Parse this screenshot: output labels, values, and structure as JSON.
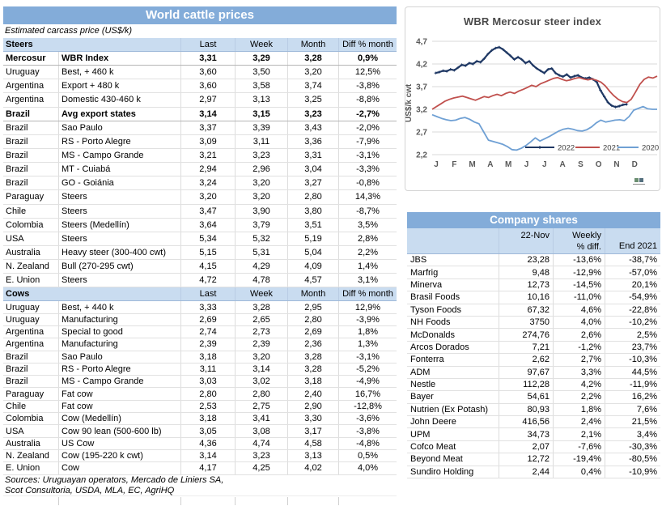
{
  "colors": {
    "header_blue": "#83ACD9",
    "row_blue": "#C9DCF0",
    "series_2022": "#1F3864",
    "series_2021": "#C0504D",
    "series_2020": "#6FA0D4"
  },
  "left_panel": {
    "title": "World cattle prices",
    "subtitle": "Estimated carcass price (US$/k)",
    "columns": [
      "Last",
      "Week",
      "Month",
      "Diff % month"
    ],
    "sections": [
      {
        "name": "Steers",
        "rows": [
          {
            "b": true,
            "c": [
              "Mercosur",
              "WBR Index",
              "3,31",
              "3,29",
              "3,28",
              "0,9%"
            ]
          },
          {
            "b": false,
            "c": [
              "Uruguay",
              "Best, + 460 k",
              "3,60",
              "3,50",
              "3,20",
              "12,5%"
            ]
          },
          {
            "b": false,
            "c": [
              "Argentina",
              "Export + 480 k",
              "3,60",
              "3,58",
              "3,74",
              "-3,8%"
            ]
          },
          {
            "b": false,
            "c": [
              "Argentina",
              "Domestic 430-460 k",
              "2,97",
              "3,13",
              "3,25",
              "-8,8%"
            ]
          },
          {
            "b": true,
            "c": [
              "Brazil",
              "Avg export states",
              "3,14",
              "3,15",
              "3,23",
              "-2,7%"
            ]
          },
          {
            "b": false,
            "c": [
              "Brazil",
              "Sao Paulo",
              "3,37",
              "3,39",
              "3,43",
              "-2,0%"
            ]
          },
          {
            "b": false,
            "c": [
              "Brazil",
              "RS - Porto Alegre",
              "3,09",
              "3,11",
              "3,36",
              "-7,9%"
            ]
          },
          {
            "b": false,
            "c": [
              "Brazil",
              "MS - Campo Grande",
              "3,21",
              "3,23",
              "3,31",
              "-3,1%"
            ]
          },
          {
            "b": false,
            "c": [
              "Brazil",
              "MT - Cuiabá",
              "2,94",
              "2,96",
              "3,04",
              "-3,3%"
            ]
          },
          {
            "b": false,
            "c": [
              "Brazil",
              "GO - Goiánia",
              "3,24",
              "3,20",
              "3,27",
              "-0,8%"
            ]
          },
          {
            "b": false,
            "c": [
              "Paraguay",
              "Steers",
              "3,20",
              "3,20",
              "2,80",
              "14,3%"
            ]
          },
          {
            "b": false,
            "c": [
              "Chile",
              "Steers",
              "3,47",
              "3,90",
              "3,80",
              "-8,7%"
            ]
          },
          {
            "b": false,
            "c": [
              "Colombia",
              "Steers (Medellín)",
              "3,64",
              "3,79",
              "3,51",
              "3,5%"
            ]
          },
          {
            "b": false,
            "c": [
              "USA",
              "Steers",
              "5,34",
              "5,32",
              "5,19",
              "2,8%"
            ]
          },
          {
            "b": false,
            "c": [
              "Australia",
              "Heavy steer (300-400 cwt)",
              "5,15",
              "5,31",
              "5,04",
              "2,2%"
            ]
          },
          {
            "b": false,
            "c": [
              "N. Zealand",
              "Bull (270-295 cwt)",
              "4,15",
              "4,29",
              "4,09",
              "1,4%"
            ]
          },
          {
            "b": false,
            "c": [
              "E. Union",
              "Steers",
              "4,72",
              "4,78",
              "4,57",
              "3,1%"
            ]
          }
        ]
      },
      {
        "name": "Cows",
        "rows": [
          {
            "b": false,
            "c": [
              "Uruguay",
              "Best, + 440 k",
              "3,33",
              "3,28",
              "2,95",
              "12,9%"
            ]
          },
          {
            "b": false,
            "c": [
              "Uruguay",
              "Manufacturing",
              "2,69",
              "2,65",
              "2,80",
              "-3,9%"
            ]
          },
          {
            "b": false,
            "c": [
              "Argentina",
              "Special to good",
              "2,74",
              "2,73",
              "2,69",
              "1,8%"
            ]
          },
          {
            "b": false,
            "c": [
              "Argentina",
              "Manufacturing",
              "2,39",
              "2,39",
              "2,36",
              "1,3%"
            ]
          },
          {
            "b": false,
            "c": [
              "Brazil",
              "Sao Paulo",
              "3,18",
              "3,20",
              "3,28",
              "-3,1%"
            ]
          },
          {
            "b": false,
            "c": [
              "Brazil",
              "RS - Porto Alegre",
              "3,11",
              "3,14",
              "3,28",
              "-5,2%"
            ]
          },
          {
            "b": false,
            "c": [
              "Brazil",
              "MS - Campo Grande",
              "3,03",
              "3,02",
              "3,18",
              "-4,9%"
            ]
          },
          {
            "b": false,
            "c": [
              "Paraguay",
              "Fat cow",
              "2,80",
              "2,80",
              "2,40",
              "16,7%"
            ]
          },
          {
            "b": false,
            "c": [
              "Chile",
              "Fat cow",
              "2,53",
              "2,75",
              "2,90",
              "-12,8%"
            ]
          },
          {
            "b": false,
            "c": [
              "Colombia",
              "Cow (Medellín)",
              "3,18",
              "3,41",
              "3,30",
              "-3,6%"
            ]
          },
          {
            "b": false,
            "c": [
              "USA",
              "Cow 90 lean (500-600 lb)",
              "3,05",
              "3,08",
              "3,17",
              "-3,8%"
            ]
          },
          {
            "b": false,
            "c": [
              "Australia",
              "US Cow",
              "4,36",
              "4,74",
              "4,58",
              "-4,8%"
            ]
          },
          {
            "b": false,
            "c": [
              "N. Zealand",
              "Cow (195-220 k cwt)",
              "3,14",
              "3,23",
              "3,13",
              "0,5%"
            ]
          },
          {
            "b": false,
            "c": [
              "E. Union",
              "Cow",
              "4,17",
              "4,25",
              "4,02",
              "4,0%"
            ]
          }
        ]
      }
    ],
    "sources_line1": "Sources: Uruguayan operators, Mercado de Liniers SA,",
    "sources_line2": "Scot Consultoria, USDA, MLA, EC, AgriHQ"
  },
  "chart_data": {
    "type": "line",
    "title": "WBR Mercosur steer index",
    "xlabel": "",
    "ylabel": "US$/k cwt",
    "ylim": [
      2.2,
      4.7
    ],
    "grid": true,
    "legend_position": "inside-bottom-right",
    "ytick_values": [
      4.7,
      4.2,
      3.7,
      3.2,
      2.7,
      2.2
    ],
    "ytick_labels": [
      "4,7",
      "4,2",
      "3,7",
      "3,2",
      "2,7",
      "2,2"
    ],
    "x_labels": [
      "J",
      "F",
      "M",
      "A",
      "M",
      "J",
      "J",
      "A",
      "S",
      "O",
      "N",
      "D"
    ],
    "series": [
      {
        "name": "2022",
        "color": "#1F3864",
        "marker": "plus",
        "x_start": 0.015,
        "x_end": 0.865,
        "values": [
          4.0,
          4.02,
          4.05,
          4.04,
          4.08,
          4.06,
          4.12,
          4.18,
          4.16,
          4.22,
          4.2,
          4.26,
          4.24,
          4.32,
          4.42,
          4.5,
          4.55,
          4.57,
          4.52,
          4.45,
          4.38,
          4.3,
          4.35,
          4.3,
          4.22,
          4.26,
          4.17,
          4.1,
          4.05,
          4.0,
          4.08,
          4.1,
          4.0,
          3.95,
          3.92,
          3.97,
          3.9,
          3.93,
          3.95,
          3.9,
          3.88,
          3.9,
          3.86,
          3.8,
          3.62,
          3.48,
          3.35,
          3.28,
          3.25,
          3.27,
          3.3,
          3.31
        ]
      },
      {
        "name": "2021",
        "color": "#C0504D",
        "x_start": 0,
        "x_end": 1,
        "values": [
          3.2,
          3.26,
          3.32,
          3.38,
          3.42,
          3.45,
          3.47,
          3.49,
          3.46,
          3.43,
          3.4,
          3.44,
          3.48,
          3.46,
          3.5,
          3.53,
          3.5,
          3.55,
          3.58,
          3.55,
          3.6,
          3.64,
          3.68,
          3.73,
          3.7,
          3.76,
          3.8,
          3.84,
          3.88,
          3.9,
          3.86,
          3.83,
          3.85,
          3.88,
          3.9,
          3.87,
          3.85,
          3.87,
          3.84,
          3.8,
          3.72,
          3.6,
          3.5,
          3.42,
          3.37,
          3.35,
          3.42,
          3.58,
          3.75,
          3.86,
          3.91,
          3.89,
          3.93
        ]
      },
      {
        "name": "2020",
        "color": "#6FA0D4",
        "x_start": 0,
        "x_end": 1,
        "values": [
          3.08,
          3.04,
          3.0,
          2.97,
          2.95,
          2.96,
          3.0,
          3.02,
          2.98,
          2.92,
          2.88,
          2.7,
          2.52,
          2.49,
          2.46,
          2.43,
          2.38,
          2.31,
          2.3,
          2.34,
          2.4,
          2.48,
          2.57,
          2.5,
          2.55,
          2.6,
          2.66,
          2.72,
          2.76,
          2.78,
          2.76,
          2.73,
          2.72,
          2.75,
          2.81,
          2.9,
          2.96,
          2.92,
          2.94,
          2.96,
          2.97,
          2.95,
          3.04,
          3.18,
          3.22,
          3.26,
          3.21,
          3.2,
          3.2
        ]
      }
    ]
  },
  "company": {
    "title": "Company shares",
    "col_headers": {
      "date": "22-Nov",
      "weekly_line1": "Weekly",
      "weekly_line2": "% diff.",
      "end": "End 2021"
    },
    "rows": [
      [
        "JBS",
        "23,28",
        "-13,6%",
        "-38,7%"
      ],
      [
        "Marfrig",
        "9,48",
        "-12,9%",
        "-57,0%"
      ],
      [
        "Minerva",
        "12,73",
        "-14,5%",
        "20,1%"
      ],
      [
        "Brasil Foods",
        "10,16",
        "-11,0%",
        "-54,9%"
      ],
      [
        "Tyson Foods",
        "67,32",
        "4,6%",
        "-22,8%"
      ],
      [
        "NH Foods",
        "3750",
        "4,0%",
        "-10,2%"
      ],
      [
        "McDonalds",
        "274,76",
        "2,6%",
        "2,5%"
      ],
      [
        "Arcos Dorados",
        "7,21",
        "-1,2%",
        "23,7%"
      ],
      [
        "Fonterra",
        "2,62",
        "2,7%",
        "-10,3%"
      ],
      [
        "ADM",
        "97,67",
        "3,3%",
        "44,5%"
      ],
      [
        "Nestle",
        "112,28",
        "4,2%",
        "-11,9%"
      ],
      [
        "Bayer",
        "54,61",
        "2,2%",
        "16,2%"
      ],
      [
        "Nutrien (Ex Potash)",
        "80,93",
        "1,8%",
        "7,6%"
      ],
      [
        "John Deere",
        "416,56",
        "2,4%",
        "21,5%"
      ],
      [
        "UPM",
        "34,73",
        "2,1%",
        "3,4%"
      ],
      [
        "Cofco Meat",
        "2,07",
        "-7,6%",
        "-30,3%"
      ],
      [
        "Beyond Meat",
        "12,72",
        "-19,4%",
        "-80,5%"
      ],
      [
        "Sundiro Holding",
        "2,44",
        "0,4%",
        "-10,9%"
      ]
    ]
  }
}
